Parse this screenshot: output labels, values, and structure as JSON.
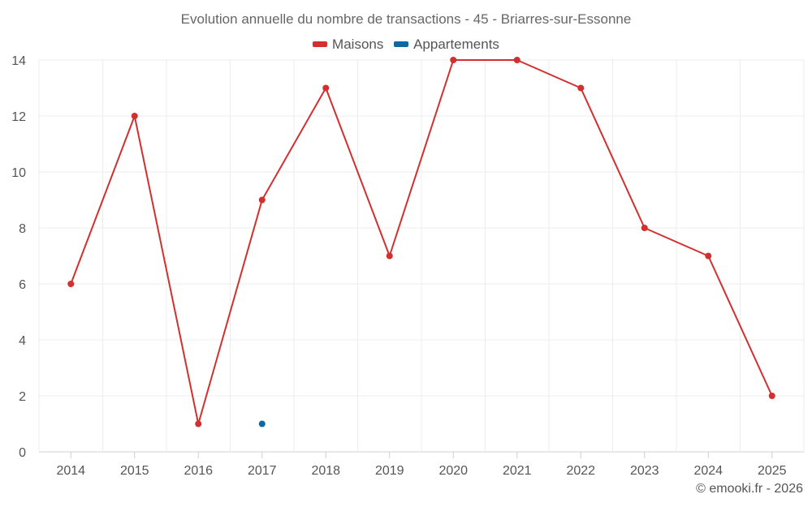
{
  "chart_data": {
    "type": "line",
    "title": "Evolution annuelle du nombre de transactions - 45 - Briarres-sur-Essonne",
    "categories": [
      "2014",
      "2015",
      "2016",
      "2017",
      "2018",
      "2019",
      "2020",
      "2021",
      "2022",
      "2023",
      "2024",
      "2025"
    ],
    "series": [
      {
        "name": "Maisons",
        "color": "#d32f2f",
        "values": [
          6,
          12,
          1,
          9,
          13,
          7,
          14,
          14,
          13,
          8,
          7,
          2
        ]
      },
      {
        "name": "Appartements",
        "color": "#0a6aa1",
        "values": [
          null,
          null,
          null,
          1,
          null,
          null,
          null,
          null,
          null,
          null,
          null,
          null
        ]
      }
    ],
    "ylim": [
      0,
      14
    ],
    "yticks": [
      0,
      2,
      4,
      6,
      8,
      10,
      12,
      14
    ],
    "xlabel": "",
    "ylabel": "",
    "grid": true,
    "legend": "top-center"
  },
  "credit": "© emooki.fr - 2026"
}
